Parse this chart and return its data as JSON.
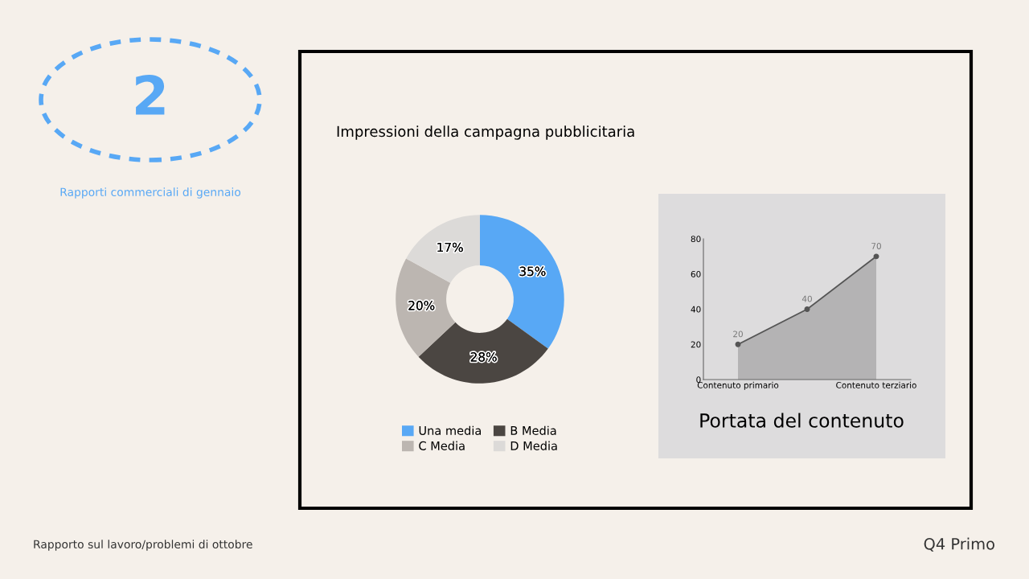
{
  "chart_data": [
    {
      "type": "donut",
      "title": "Impressioni della campagna pubblicitaria",
      "categories": [
        "Una media",
        "B Media",
        "C Media",
        "D Media"
      ],
      "values": [
        35,
        28,
        20,
        17
      ],
      "value_labels": [
        "35%",
        "28%",
        "20%",
        "17%"
      ],
      "colors": [
        "#58a8f5",
        "#4b4642",
        "#bcb6b1",
        "#dcdad8"
      ],
      "legend": "bottom",
      "annotations": [
        "2",
        "Rapporti commerciali di gennaio",
        "Rapporto sul lavoro/problemi di ottobre",
        "Q4 Primo"
      ]
    },
    {
      "type": "area",
      "title": "Portata del contenuto",
      "categories": [
        "Contenuto primario",
        null,
        "Contenuto terziario"
      ],
      "series": [
        {
          "color": "#555555",
          "values": [
            20,
            40,
            70
          ]
        }
      ],
      "ylim": [
        0,
        80
      ],
      "yticks": [
        0,
        20,
        40,
        60,
        80
      ],
      "data_labels": true,
      "marker": "circle",
      "grid": false
    }
  ]
}
